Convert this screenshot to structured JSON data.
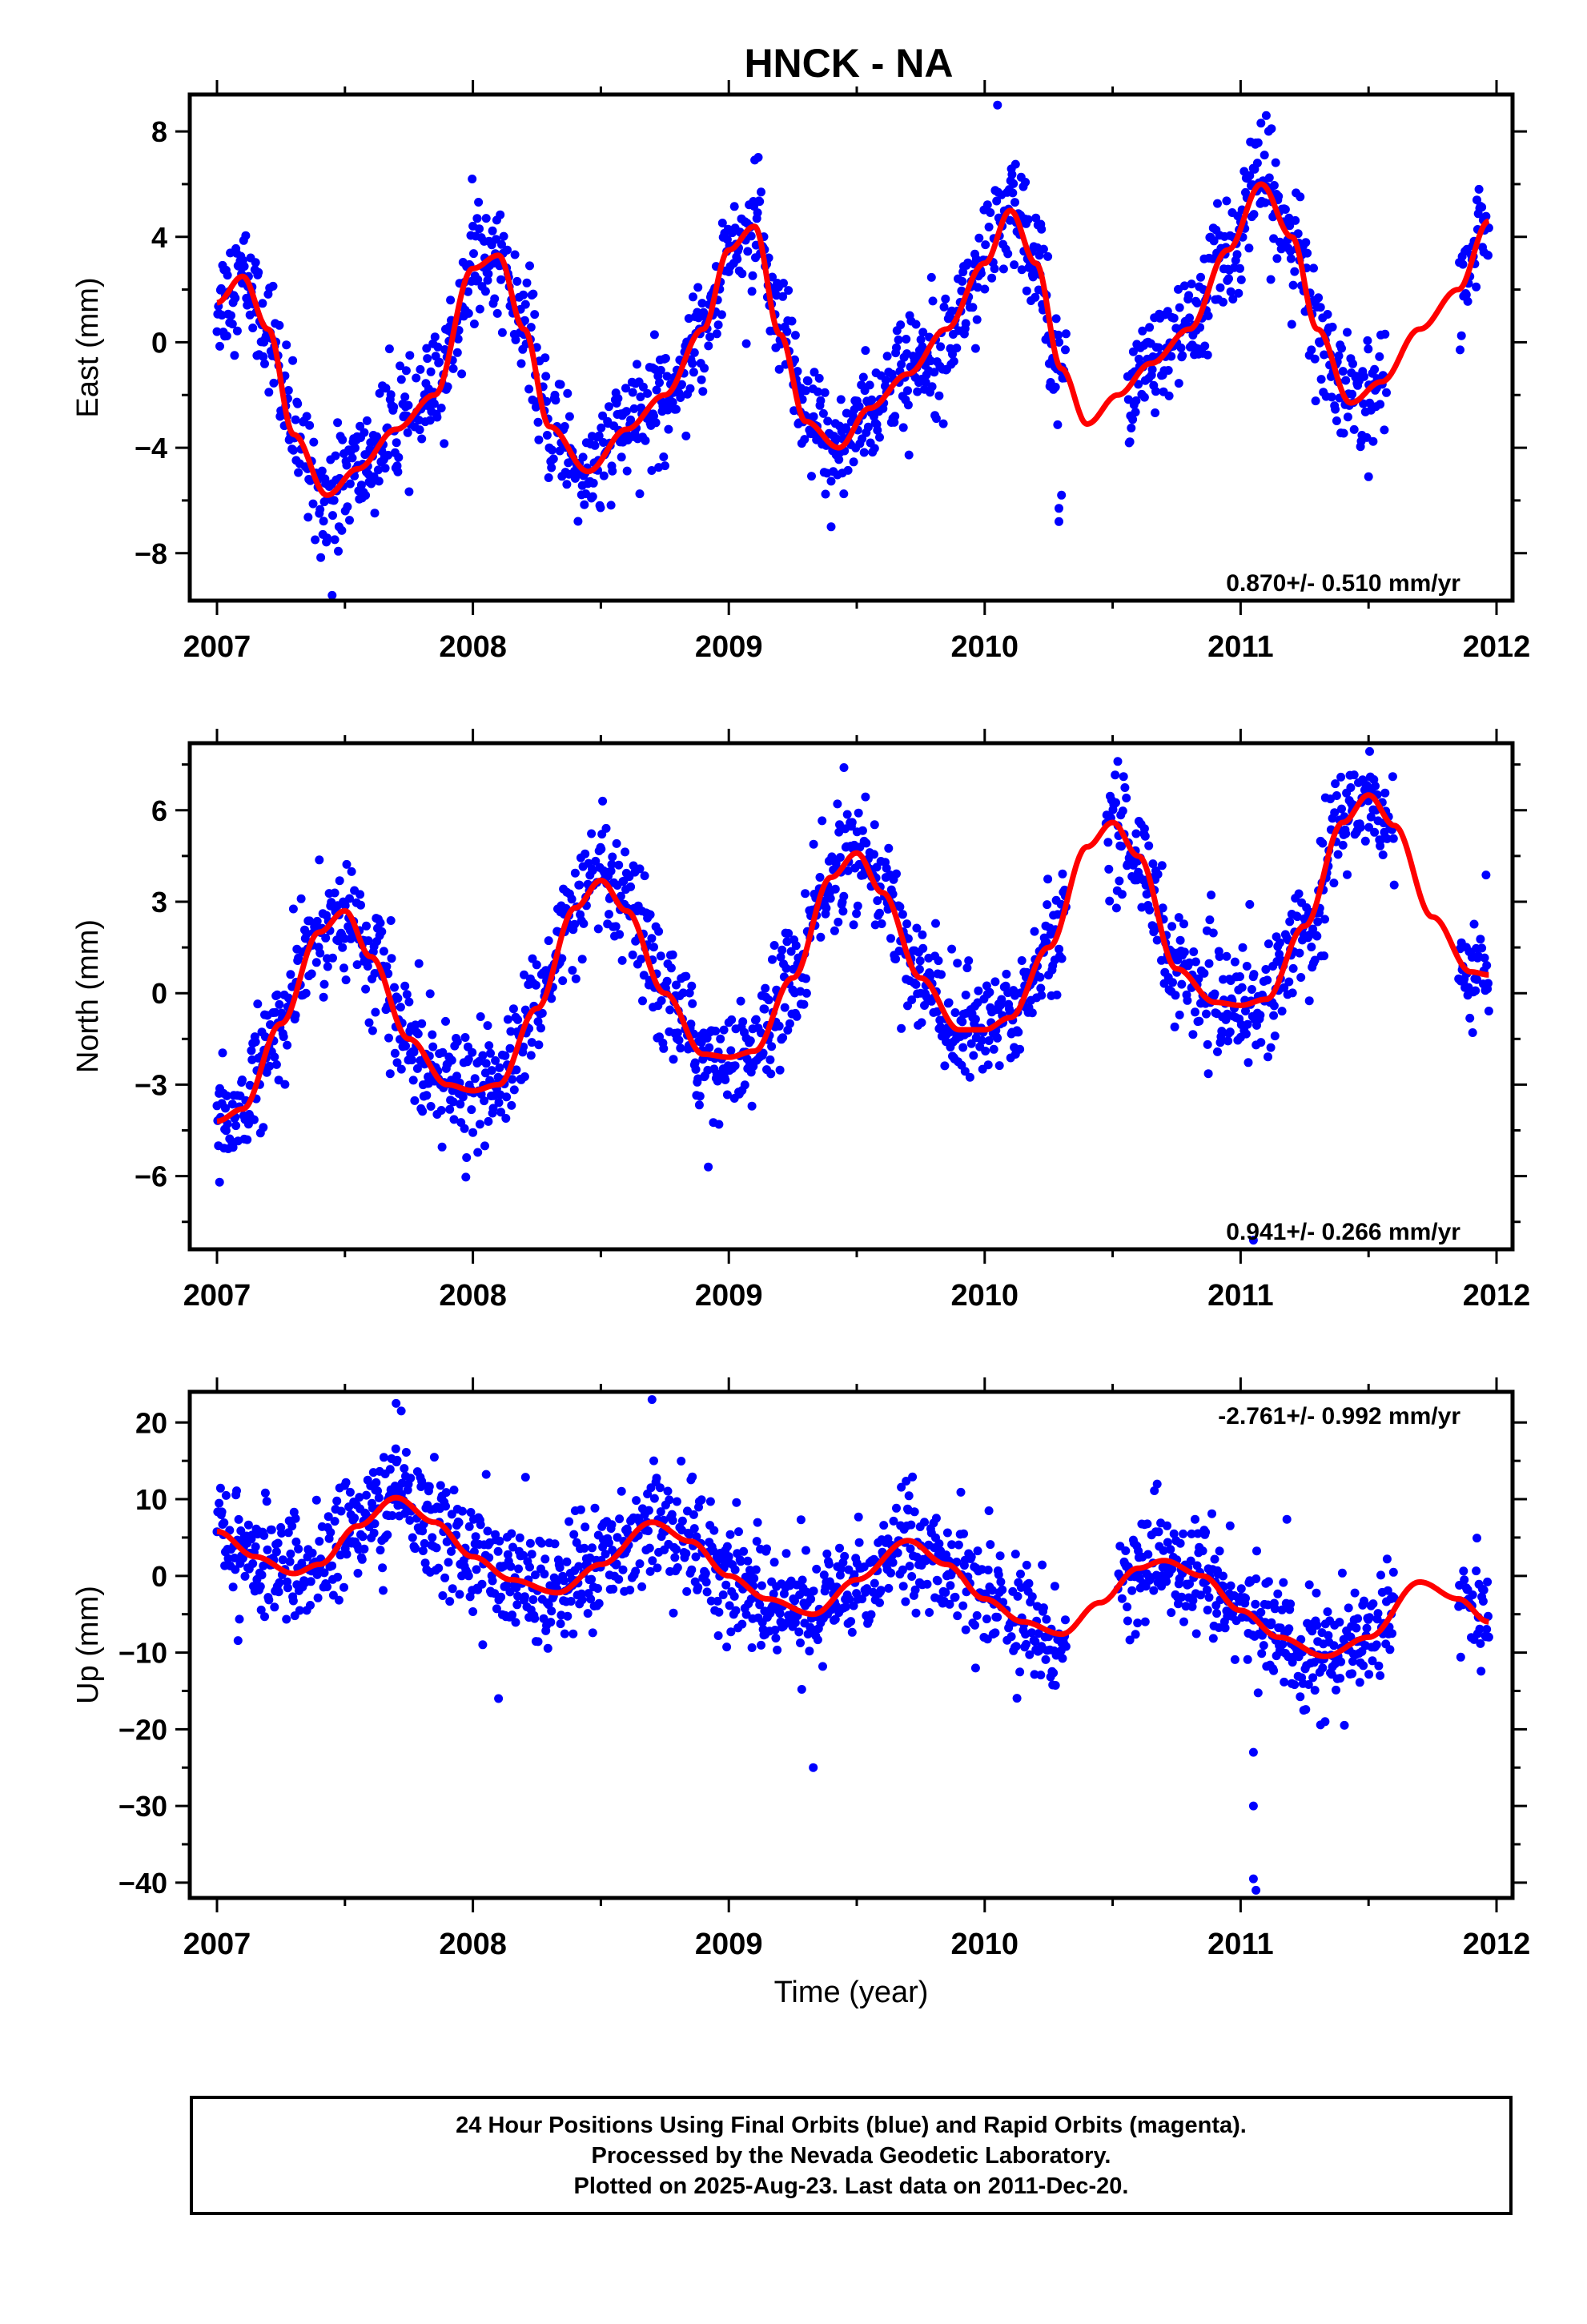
{
  "title": "HNCK - NA",
  "footer": {
    "line1": "24 Hour Positions Using Final Orbits (blue) and Rapid Orbits (magenta).",
    "line2": "Processed by the Nevada Geodetic Laboratory.",
    "line3": "Plotted on 2025-Aug-23. Last data on 2011-Dec-20."
  },
  "colors": {
    "points": "#0000ff",
    "model": "#ff0000",
    "axis": "#000000",
    "background": "#ffffff"
  },
  "chart_data": [
    {
      "type": "scatter",
      "ylabel": "East (mm)",
      "xlabel": "",
      "xlim": [
        2007,
        2012
      ],
      "ylim": [
        -9.8,
        9.4
      ],
      "xticks": [
        2007,
        2008,
        2009,
        2010,
        2011,
        2012
      ],
      "yticks": [
        -8,
        -4,
        0,
        4,
        8
      ],
      "rate_label": "0.870+/- 0.510 mm/yr",
      "rate_label_position": "bottom-right",
      "data_range": [
        2007.0,
        2011.97
      ],
      "gaps": [
        [
          2010.32,
          2010.55
        ],
        [
          2011.57,
          2011.85
        ]
      ],
      "model_curve": {
        "x": [
          2007.0,
          2007.1,
          2007.2,
          2007.3,
          2007.43,
          2007.55,
          2007.7,
          2007.85,
          2008.0,
          2008.1,
          2008.2,
          2008.3,
          2008.45,
          2008.6,
          2008.75,
          2008.9,
          2009.0,
          2009.1,
          2009.2,
          2009.3,
          2009.43,
          2009.55,
          2009.7,
          2009.85,
          2010.0,
          2010.1,
          2010.2,
          2010.3,
          2010.4,
          2010.52,
          2010.65,
          2010.8,
          2010.95,
          2011.08,
          2011.2,
          2011.3,
          2011.43,
          2011.55,
          2011.7,
          2011.85,
          2011.97
        ],
        "y": [
          1.5,
          2.5,
          0.5,
          -3.5,
          -5.8,
          -4.8,
          -3.3,
          -2.0,
          2.8,
          3.3,
          0.5,
          -3.2,
          -4.9,
          -3.3,
          -2.0,
          0.5,
          3.5,
          4.4,
          0.3,
          -3.0,
          -4.0,
          -2.5,
          -1.2,
          0.5,
          3.0,
          5.0,
          3.0,
          -1.0,
          -3.1,
          -2.0,
          -0.8,
          0.5,
          3.5,
          6.0,
          4.0,
          0.5,
          -2.3,
          -1.5,
          0.5,
          2.0,
          4.6
        ]
      },
      "outliers": [
        [
          2010.29,
          -6.8
        ],
        [
          2010.29,
          -6.3
        ],
        [
          2010.3,
          -5.8
        ],
        [
          2007.45,
          -9.6
        ],
        [
          2009.4,
          -7.0
        ],
        [
          2010.05,
          9.0
        ],
        [
          2011.1,
          8.6
        ],
        [
          2011.5,
          -5.1
        ]
      ]
    },
    {
      "type": "scatter",
      "ylabel": "North (mm)",
      "xlabel": "",
      "xlim": [
        2007,
        2012
      ],
      "ylim": [
        -8.4,
        8.2
      ],
      "xticks": [
        2007,
        2008,
        2009,
        2010,
        2011,
        2012
      ],
      "yticks": [
        -6,
        -3,
        0,
        3,
        6
      ],
      "rate_label": "0.941+/- 0.266 mm/yr",
      "rate_label_position": "bottom-right",
      "data_range": [
        2007.0,
        2011.97
      ],
      "gaps": [
        [
          2010.32,
          2010.47
        ],
        [
          2011.6,
          2011.85
        ]
      ],
      "model_curve": {
        "x": [
          2007.0,
          2007.1,
          2007.25,
          2007.4,
          2007.5,
          2007.6,
          2007.75,
          2007.9,
          2008.0,
          2008.1,
          2008.25,
          2008.4,
          2008.5,
          2008.6,
          2008.75,
          2008.9,
          2009.0,
          2009.1,
          2009.25,
          2009.4,
          2009.5,
          2009.6,
          2009.75,
          2009.9,
          2010.0,
          2010.1,
          2010.25,
          2010.4,
          2010.5,
          2010.6,
          2010.75,
          2010.9,
          2011.0,
          2011.1,
          2011.25,
          2011.4,
          2011.5,
          2011.6,
          2011.75,
          2011.9,
          2011.97
        ],
        "y": [
          -4.2,
          -3.8,
          -1.0,
          2.0,
          2.7,
          1.2,
          -1.5,
          -3.0,
          -3.2,
          -3.0,
          -0.5,
          2.8,
          3.7,
          2.7,
          0.0,
          -2.0,
          -2.1,
          -1.9,
          0.5,
          3.8,
          4.6,
          3.3,
          0.5,
          -1.2,
          -1.2,
          -0.8,
          1.5,
          4.8,
          5.6,
          4.5,
          0.8,
          -0.3,
          -0.4,
          -0.2,
          2.2,
          5.6,
          6.5,
          5.5,
          2.5,
          0.7,
          0.6
        ]
      },
      "outliers": [
        [
          2007.01,
          -6.2
        ],
        [
          2008.92,
          -5.7
        ],
        [
          2010.52,
          7.6
        ],
        [
          2011.05,
          -8.1
        ],
        [
          2011.5,
          8.3
        ],
        [
          2009.45,
          7.4
        ]
      ]
    },
    {
      "type": "scatter",
      "ylabel": "Up (mm)",
      "xlabel": "Time (year)",
      "xlim": [
        2007,
        2012
      ],
      "ylim": [
        -42,
        24
      ],
      "xticks": [
        2007,
        2008,
        2009,
        2010,
        2011,
        2012
      ],
      "yticks": [
        -40,
        -30,
        -20,
        -10,
        0,
        10,
        20
      ],
      "rate_label": "-2.761+/- 0.992 mm/yr",
      "rate_label_position": "top-right",
      "data_range": [
        2007.0,
        2011.97
      ],
      "gaps": [
        [
          2010.32,
          2010.52
        ],
        [
          2011.6,
          2011.85
        ]
      ],
      "model_curve": {
        "x": [
          2007.0,
          2007.15,
          2007.3,
          2007.4,
          2007.55,
          2007.7,
          2007.85,
          2008.0,
          2008.15,
          2008.33,
          2008.5,
          2008.7,
          2008.85,
          2009.0,
          2009.15,
          2009.33,
          2009.5,
          2009.7,
          2009.85,
          2010.0,
          2010.15,
          2010.3,
          2010.45,
          2010.6,
          2010.7,
          2010.85,
          2011.0,
          2011.15,
          2011.33,
          2011.5,
          2011.7,
          2011.85,
          2011.97
        ],
        "y": [
          5.8,
          2.5,
          0.3,
          1.5,
          6.5,
          10.2,
          7.0,
          2.5,
          -0.5,
          -2.2,
          1.5,
          7.0,
          4.5,
          0.0,
          -3.0,
          -5.0,
          -0.5,
          4.6,
          1.5,
          -3.0,
          -6.0,
          -7.6,
          -3.5,
          1.0,
          2.0,
          0.0,
          -4.5,
          -8.0,
          -10.5,
          -8.0,
          -0.8,
          -3.0,
          -6.0
        ]
      },
      "outliers": [
        [
          2007.7,
          22.5
        ],
        [
          2007.72,
          21.5
        ],
        [
          2008.7,
          23.0
        ],
        [
          2008.1,
          -16.0
        ],
        [
          2009.33,
          -25.0
        ],
        [
          2011.05,
          -23.0
        ],
        [
          2011.05,
          -30.0
        ],
        [
          2011.05,
          -39.5
        ],
        [
          2011.06,
          -41.0
        ],
        [
          2011.33,
          -19.0
        ]
      ]
    }
  ]
}
